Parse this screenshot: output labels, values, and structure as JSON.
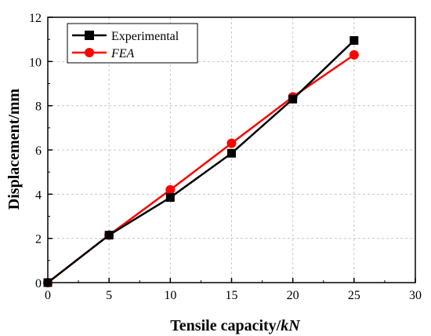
{
  "chart_data": {
    "type": "line",
    "xlabel_prefix": "Tensile capacity/",
    "xlabel_unit": "kN",
    "ylabel": "Displacement/mm",
    "xlim": [
      0,
      30
    ],
    "ylim": [
      0,
      12
    ],
    "xticks": [
      "0",
      "5",
      "10",
      "15",
      "20",
      "25",
      "30"
    ],
    "yticks": [
      "0",
      "2",
      "4",
      "6",
      "8",
      "10",
      "12"
    ],
    "grid": true,
    "legend_position": "top-left",
    "series": [
      {
        "name": "Experimental",
        "color": "#000000",
        "marker": "square",
        "x": [
          0,
          5,
          10,
          15,
          20,
          25
        ],
        "y": [
          0,
          2.15,
          3.85,
          5.85,
          8.3,
          10.95
        ]
      },
      {
        "name": "FEA",
        "color": "#ff0000",
        "marker": "circle",
        "x": [
          0,
          5,
          10,
          15,
          20,
          25
        ],
        "y": [
          0,
          2.15,
          4.2,
          6.3,
          8.4,
          10.3
        ]
      }
    ]
  }
}
